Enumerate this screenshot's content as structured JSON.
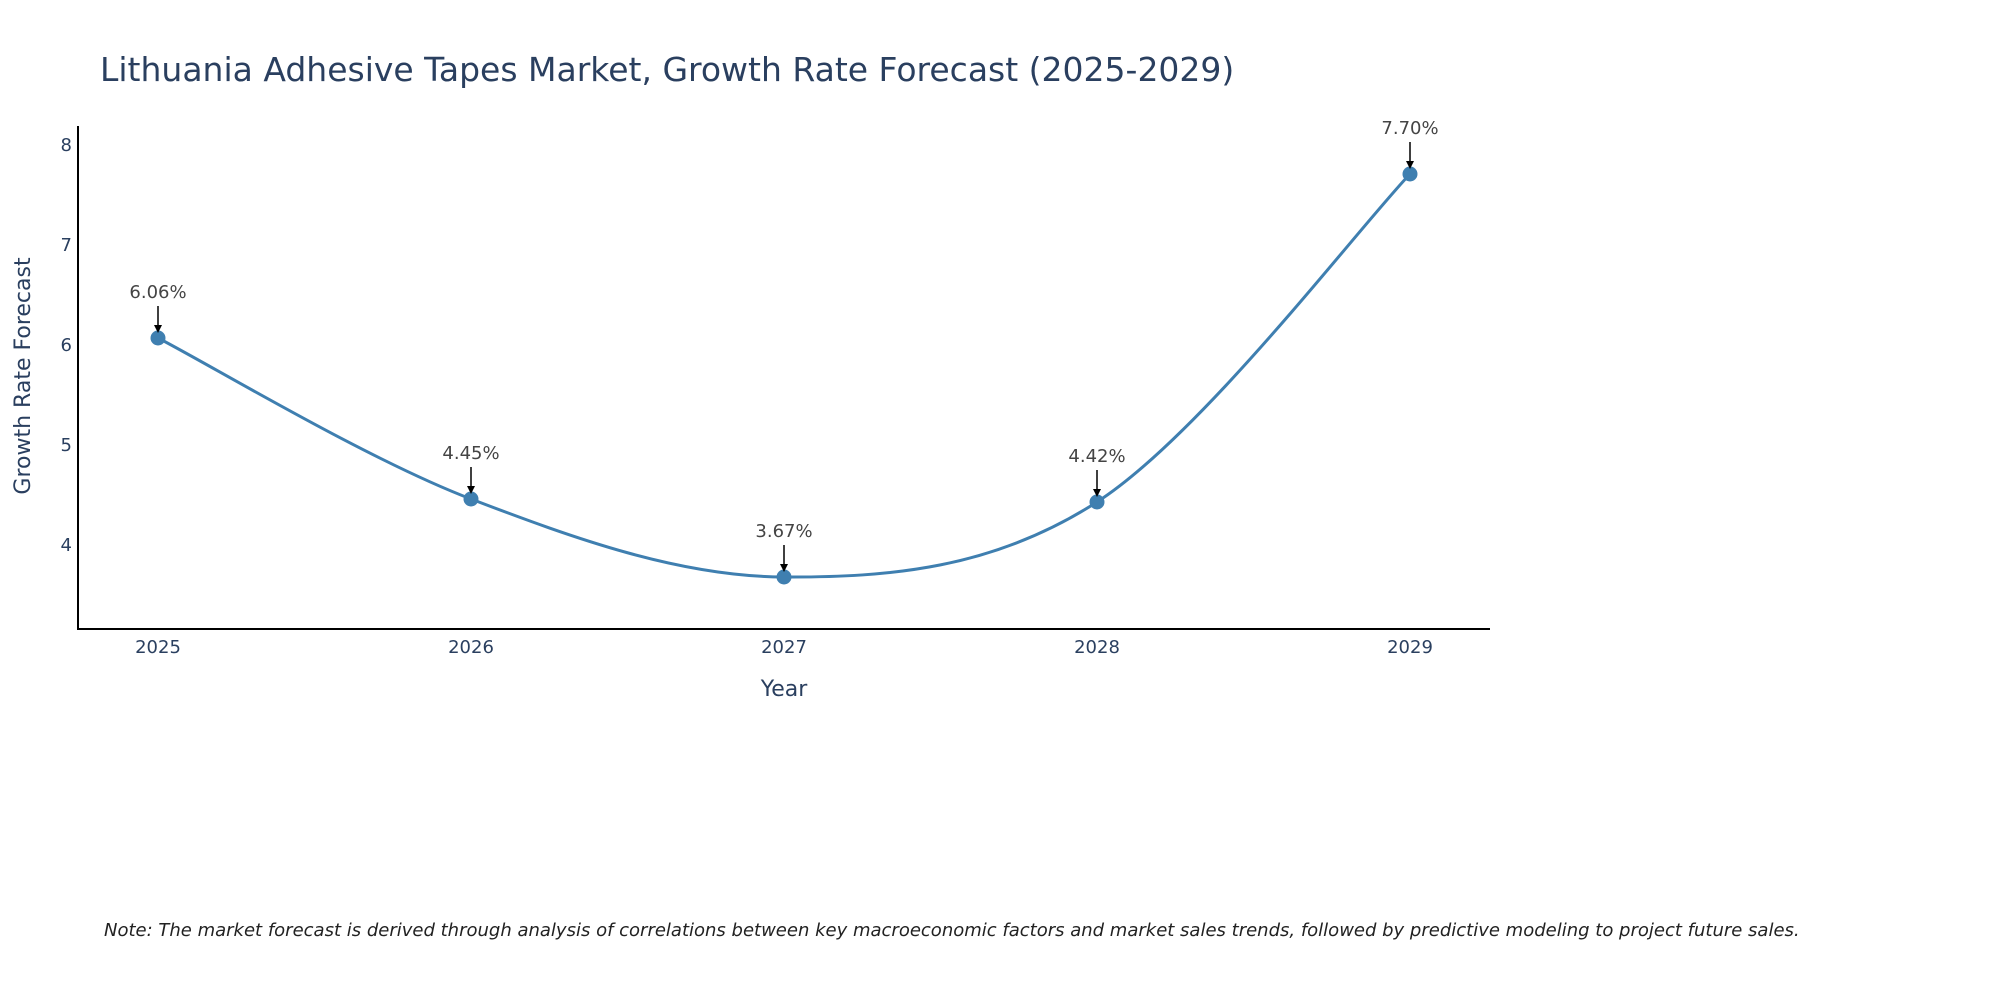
{
  "chart_data": {
    "type": "line",
    "title": "Lithuania Adhesive Tapes Market, Growth Rate Forecast (2025-2029)",
    "xlabel": "Year",
    "ylabel": "Growth Rate Forecast",
    "categories": [
      "2025",
      "2026",
      "2027",
      "2028",
      "2029"
    ],
    "series": [
      {
        "name": "Growth Rate Forecast",
        "values": [
          6.06,
          4.45,
          3.67,
          4.42,
          7.7
        ],
        "labels": [
          "6.06%",
          "4.45%",
          "3.67%",
          "4.42%",
          "7.70%"
        ]
      }
    ],
    "yticks": [
      "4",
      "5",
      "6",
      "7",
      "8"
    ],
    "ylim": [
      3.15,
      8.2
    ],
    "grid": false,
    "legend": "none",
    "line_shape": "spline",
    "colors": {
      "line": "#3f7fb0",
      "marker": "#3f7fb0",
      "axis": "#000000",
      "tick_text": "#2a3f5f",
      "annotation_text": "#444444",
      "arrow": "#000000"
    },
    "note": "Note: The market forecast is derived through analysis of correlations between key macroeconomic factors and market sales trends, followed by predictive modeling to project future sales."
  }
}
